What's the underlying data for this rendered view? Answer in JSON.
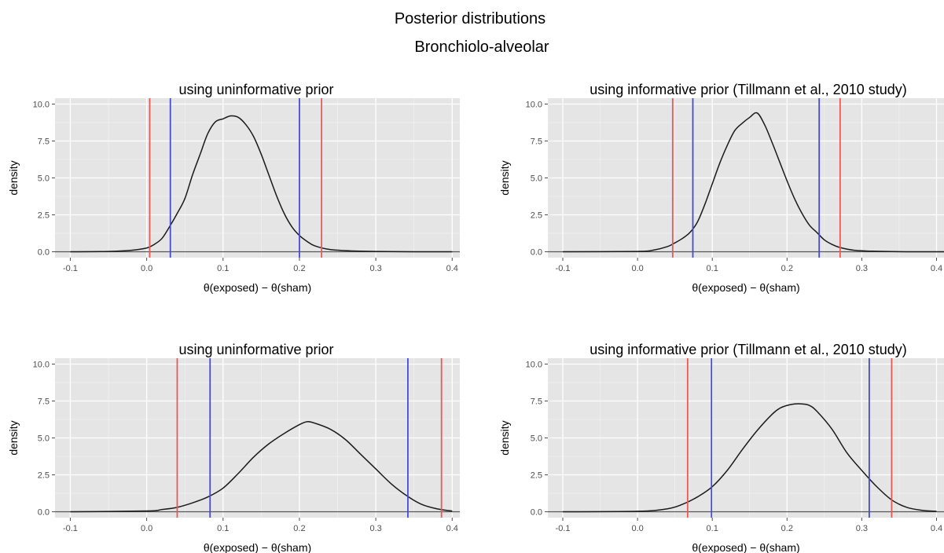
{
  "figure": {
    "title": "Posterior distributions",
    "subtitle": "Bronchiolo-alveolar"
  },
  "colors": {
    "panel_background": "#e5e5e5",
    "grid": "#ffffff",
    "density_line": "#1a1a1a",
    "red_interval": "#e8595a",
    "blue_interval": "#4a4ad0"
  },
  "chart_data": [
    {
      "type": "line",
      "title": "using uninformative prior",
      "xlabel": "θ(exposed) − θ(sham)",
      "ylabel": "density",
      "xlim": [
        -0.12,
        0.41
      ],
      "ylim": [
        -0.4,
        10.4
      ],
      "x_ticks": [
        -0.1,
        0.0,
        0.1,
        0.2,
        0.3,
        0.4
      ],
      "x_tick_labels": [
        "-0.1",
        "0.0",
        "0.1",
        "0.2",
        "0.3",
        "0.4"
      ],
      "y_ticks": [
        0.0,
        2.5,
        5.0,
        7.5,
        10.0
      ],
      "y_tick_labels": [
        "0.0",
        "2.5",
        "5.0",
        "7.5",
        "10.0"
      ],
      "grid": true,
      "series": [
        {
          "x": [
            -0.1,
            -0.05,
            -0.02,
            0.0,
            0.01,
            0.02,
            0.03,
            0.04,
            0.05,
            0.06,
            0.07,
            0.08,
            0.09,
            0.1,
            0.11,
            0.12,
            0.13,
            0.14,
            0.15,
            0.16,
            0.17,
            0.18,
            0.19,
            0.2,
            0.21,
            0.22,
            0.24,
            0.27,
            0.3,
            0.35,
            0.4
          ],
          "y": [
            0.0,
            0.02,
            0.1,
            0.25,
            0.5,
            0.9,
            1.7,
            2.6,
            3.6,
            5.2,
            6.6,
            8.0,
            8.8,
            9.0,
            9.2,
            9.1,
            8.6,
            7.8,
            6.6,
            5.2,
            3.8,
            2.6,
            1.7,
            1.1,
            0.7,
            0.4,
            0.15,
            0.05,
            0.02,
            0.0,
            0.0
          ]
        }
      ],
      "red_lines": [
        0.004,
        0.229
      ],
      "blue_lines": [
        0.031,
        0.2
      ]
    },
    {
      "type": "line",
      "title": "using informative prior (Tillmann et al., 2010 study)",
      "xlabel": "θ(exposed) − θ(sham)",
      "ylabel": "density",
      "xlim": [
        -0.12,
        0.41
      ],
      "ylim": [
        -0.4,
        10.4
      ],
      "x_ticks": [
        -0.1,
        0.0,
        0.1,
        0.2,
        0.3,
        0.4
      ],
      "x_tick_labels": [
        "-0.1",
        "0.0",
        "0.1",
        "0.2",
        "0.3",
        "0.4"
      ],
      "y_ticks": [
        0.0,
        2.5,
        5.0,
        7.5,
        10.0
      ],
      "y_tick_labels": [
        "0.0",
        "2.5",
        "5.0",
        "7.5",
        "10.0"
      ],
      "grid": true,
      "series": [
        {
          "x": [
            -0.1,
            0.0,
            0.02,
            0.04,
            0.05,
            0.06,
            0.07,
            0.08,
            0.09,
            0.1,
            0.11,
            0.12,
            0.13,
            0.14,
            0.15,
            0.16,
            0.17,
            0.18,
            0.19,
            0.2,
            0.21,
            0.22,
            0.23,
            0.24,
            0.25,
            0.26,
            0.27,
            0.29,
            0.32,
            0.36,
            0.41
          ],
          "y": [
            0.0,
            0.02,
            0.1,
            0.35,
            0.6,
            0.9,
            1.3,
            2.0,
            3.2,
            4.6,
            6.0,
            7.2,
            8.2,
            8.7,
            9.1,
            9.4,
            8.6,
            7.4,
            6.1,
            4.8,
            3.6,
            2.6,
            1.8,
            1.3,
            0.8,
            0.5,
            0.3,
            0.1,
            0.03,
            0.0,
            0.0
          ]
        }
      ],
      "red_lines": [
        0.047,
        0.271
      ],
      "blue_lines": [
        0.074,
        0.243
      ]
    },
    {
      "type": "line",
      "title": "using uninformative prior",
      "xlabel": "θ(exposed) − θ(sham)",
      "ylabel": "density",
      "xlim": [
        -0.12,
        0.41
      ],
      "ylim": [
        -0.4,
        10.4
      ],
      "x_ticks": [
        -0.1,
        0.0,
        0.1,
        0.2,
        0.3,
        0.4
      ],
      "x_tick_labels": [
        "-0.1",
        "0.0",
        "0.1",
        "0.2",
        "0.3",
        "0.4"
      ],
      "y_ticks": [
        0.0,
        2.5,
        5.0,
        7.5,
        10.0
      ],
      "y_tick_labels": [
        "0.0",
        "2.5",
        "5.0",
        "7.5",
        "10.0"
      ],
      "grid": true,
      "series": [
        {
          "x": [
            -0.1,
            0.0,
            0.02,
            0.04,
            0.06,
            0.08,
            0.1,
            0.12,
            0.14,
            0.16,
            0.18,
            0.2,
            0.21,
            0.22,
            0.24,
            0.26,
            0.28,
            0.3,
            0.32,
            0.34,
            0.36,
            0.38,
            0.4
          ],
          "y": [
            0.0,
            0.05,
            0.15,
            0.3,
            0.6,
            1.0,
            1.6,
            2.6,
            3.7,
            4.6,
            5.3,
            5.9,
            6.1,
            6.0,
            5.6,
            4.9,
            3.9,
            2.9,
            1.9,
            1.1,
            0.5,
            0.2,
            0.05
          ]
        }
      ],
      "red_lines": [
        0.04,
        0.386
      ],
      "blue_lines": [
        0.083,
        0.342
      ]
    },
    {
      "type": "line",
      "title": "using informative prior (Tillmann et al., 2010 study)",
      "xlabel": "θ(exposed) − θ(sham)",
      "ylabel": "density",
      "xlim": [
        -0.12,
        0.41
      ],
      "ylim": [
        -0.4,
        10.4
      ],
      "x_ticks": [
        -0.1,
        0.0,
        0.1,
        0.2,
        0.3,
        0.4
      ],
      "x_tick_labels": [
        "-0.1",
        "0.0",
        "0.1",
        "0.2",
        "0.3",
        "0.4"
      ],
      "y_ticks": [
        0.0,
        2.5,
        5.0,
        7.5,
        10.0
      ],
      "y_tick_labels": [
        "0.0",
        "2.5",
        "5.0",
        "7.5",
        "10.0"
      ],
      "grid": true,
      "series": [
        {
          "x": [
            -0.1,
            0.0,
            0.04,
            0.06,
            0.08,
            0.1,
            0.12,
            0.14,
            0.16,
            0.18,
            0.19,
            0.2,
            0.21,
            0.22,
            0.23,
            0.24,
            0.26,
            0.28,
            0.3,
            0.32,
            0.34,
            0.36,
            0.38,
            0.4
          ],
          "y": [
            0.0,
            0.03,
            0.2,
            0.5,
            1.0,
            1.7,
            2.8,
            4.2,
            5.5,
            6.6,
            7.0,
            7.2,
            7.3,
            7.3,
            7.2,
            6.8,
            5.6,
            4.0,
            2.8,
            1.7,
            0.8,
            0.3,
            0.1,
            0.03
          ]
        }
      ],
      "red_lines": [
        0.067,
        0.34
      ],
      "blue_lines": [
        0.099,
        0.31
      ]
    }
  ]
}
